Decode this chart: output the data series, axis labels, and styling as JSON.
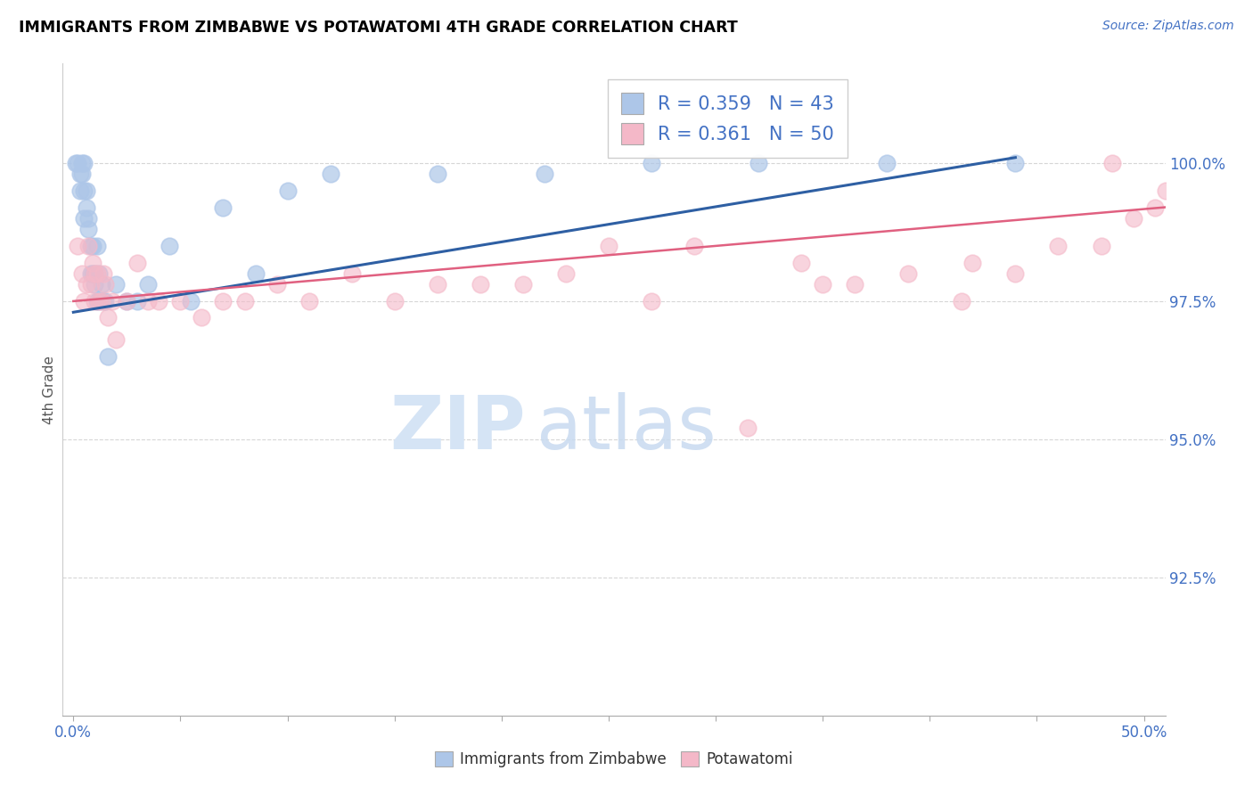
{
  "title": "IMMIGRANTS FROM ZIMBABWE VS POTAWATOMI 4TH GRADE CORRELATION CHART",
  "source_text": "Source: ZipAtlas.com",
  "ylabel": "4th Grade",
  "xlim": [
    -0.5,
    51.0
  ],
  "ylim": [
    90.0,
    101.8
  ],
  "yticks": [
    92.5,
    95.0,
    97.5,
    100.0
  ],
  "ytick_labels": [
    "92.5%",
    "95.0%",
    "97.5%",
    "100.0%"
  ],
  "xticks": [
    0.0,
    5.0,
    10.0,
    15.0,
    20.0,
    25.0,
    30.0,
    35.0,
    40.0,
    45.0,
    50.0
  ],
  "xtick_labels_show": [
    "0.0%",
    "",
    "",
    "",
    "",
    "",
    "",
    "",
    "",
    "",
    "50.0%"
  ],
  "legend_R1": "0.359",
  "legend_N1": "43",
  "legend_R2": "0.361",
  "legend_N2": "50",
  "blue_color": "#adc6e8",
  "blue_edge_color": "#adc6e8",
  "pink_color": "#f4b8c8",
  "pink_edge_color": "#f4b8c8",
  "blue_line_color": "#2e5fa3",
  "pink_line_color": "#e06080",
  "axis_color": "#4472c4",
  "watermark_zip": "ZIP",
  "watermark_atlas": "atlas",
  "watermark_color": "#d5e4f5",
  "blue_scatter_x": [
    0.1,
    0.2,
    0.3,
    0.3,
    0.4,
    0.4,
    0.5,
    0.5,
    0.5,
    0.6,
    0.6,
    0.7,
    0.7,
    0.8,
    0.8,
    0.9,
    0.9,
    1.0,
    1.0,
    1.1,
    1.1,
    1.2,
    1.2,
    1.3,
    1.4,
    1.5,
    1.6,
    2.0,
    2.5,
    3.0,
    3.5,
    4.5,
    5.5,
    7.0,
    8.5,
    10.0,
    12.0,
    17.0,
    22.0,
    27.0,
    32.0,
    38.0,
    44.0
  ],
  "blue_scatter_y": [
    100.0,
    100.0,
    99.8,
    99.5,
    100.0,
    99.8,
    100.0,
    99.5,
    99.0,
    99.5,
    99.2,
    99.0,
    98.8,
    98.5,
    98.0,
    98.5,
    98.0,
    98.0,
    97.8,
    97.5,
    98.5,
    98.0,
    97.5,
    97.8,
    97.5,
    97.5,
    96.5,
    97.8,
    97.5,
    97.5,
    97.8,
    98.5,
    97.5,
    99.2,
    98.0,
    99.5,
    99.8,
    99.8,
    99.8,
    100.0,
    100.0,
    100.0,
    100.0
  ],
  "pink_scatter_x": [
    0.2,
    0.4,
    0.5,
    0.6,
    0.7,
    0.8,
    0.9,
    1.0,
    1.0,
    1.1,
    1.2,
    1.3,
    1.4,
    1.5,
    1.6,
    1.8,
    2.0,
    2.5,
    3.0,
    3.5,
    4.0,
    5.0,
    6.0,
    7.0,
    8.0,
    9.5,
    11.0,
    13.0,
    15.0,
    17.0,
    19.0,
    21.0,
    23.0,
    25.0,
    27.0,
    29.0,
    31.5,
    34.0,
    36.5,
    39.0,
    41.5,
    44.0,
    46.0,
    48.0,
    49.5,
    50.5,
    51.0,
    35.0,
    42.0,
    48.5
  ],
  "pink_scatter_y": [
    98.5,
    98.0,
    97.5,
    97.8,
    98.5,
    97.8,
    98.2,
    98.0,
    97.5,
    98.0,
    97.5,
    97.5,
    98.0,
    97.8,
    97.2,
    97.5,
    96.8,
    97.5,
    98.2,
    97.5,
    97.5,
    97.5,
    97.2,
    97.5,
    97.5,
    97.8,
    97.5,
    98.0,
    97.5,
    97.8,
    97.8,
    97.8,
    98.0,
    98.5,
    97.5,
    98.5,
    95.2,
    98.2,
    97.8,
    98.0,
    97.5,
    98.0,
    98.5,
    98.5,
    99.0,
    99.2,
    99.5,
    97.8,
    98.2,
    100.0
  ]
}
